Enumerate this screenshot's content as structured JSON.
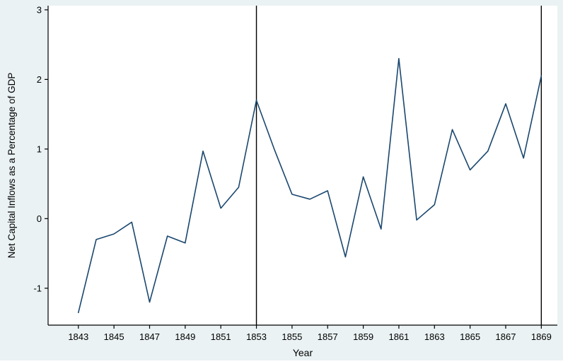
{
  "figure": {
    "background": "#eaf2f3",
    "plot_background": "#ffffff",
    "axis_color": "#000000",
    "text_color": "#000000"
  },
  "chart_data": {
    "type": "line",
    "title": "",
    "xlabel": "Year",
    "ylabel": "Net Capital Inflows as a Percentage of GDP",
    "x": [
      1843,
      1844,
      1845,
      1846,
      1847,
      1848,
      1849,
      1850,
      1851,
      1852,
      1853,
      1854,
      1855,
      1856,
      1857,
      1858,
      1859,
      1860,
      1861,
      1862,
      1863,
      1864,
      1865,
      1866,
      1867,
      1868,
      1869
    ],
    "series": [
      {
        "name": "Net capital inflows (% of GDP)",
        "color": "#1a476f",
        "values": [
          -1.35,
          -0.3,
          -0.22,
          -0.05,
          -1.2,
          -0.25,
          -0.35,
          0.97,
          0.15,
          0.45,
          1.7,
          1.0,
          0.35,
          0.28,
          0.4,
          -0.55,
          0.6,
          -0.15,
          2.3,
          -0.02,
          0.2,
          1.28,
          0.7,
          0.97,
          1.65,
          0.87,
          2.05
        ]
      }
    ],
    "xticks": [
      1843,
      1845,
      1847,
      1849,
      1851,
      1853,
      1855,
      1857,
      1859,
      1861,
      1863,
      1865,
      1867,
      1869
    ],
    "yticks": [
      -1,
      0,
      1,
      2,
      3
    ],
    "xlim": [
      1841.3,
      1869.9
    ],
    "ylim": [
      -1.53,
      3.06
    ],
    "vlines": [
      {
        "x": 1853,
        "color": "#000000"
      },
      {
        "x": 1869,
        "color": "#000000"
      }
    ],
    "grid": false,
    "legend": "none"
  }
}
